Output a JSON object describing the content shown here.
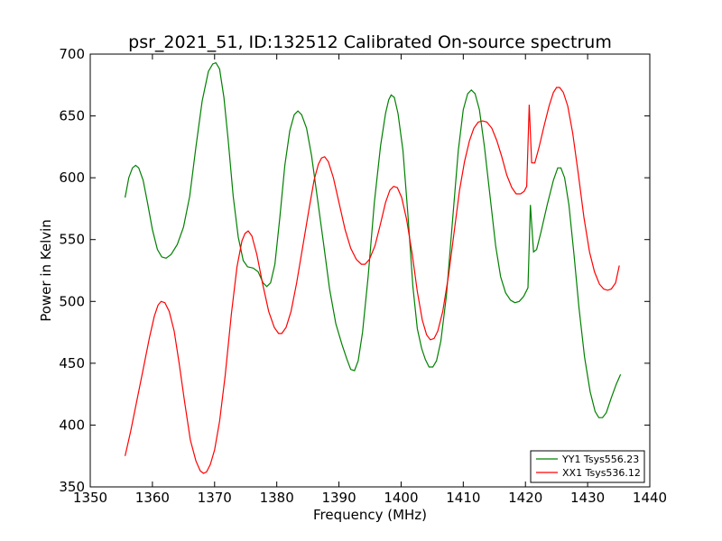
{
  "chart_data": {
    "type": "line",
    "title": "psr_2021_51, ID:132512 Calibrated On-source spectrum",
    "xlabel": "Frequency (MHz)",
    "ylabel": "Power in Kelvin",
    "xlim": [
      1350,
      1440
    ],
    "ylim": [
      350,
      700
    ],
    "xticks": [
      1350,
      1360,
      1370,
      1380,
      1390,
      1400,
      1410,
      1420,
      1430,
      1440
    ],
    "yticks": [
      350,
      400,
      450,
      500,
      550,
      600,
      650,
      700
    ],
    "grid": false,
    "legend_position": "lower-right",
    "series": [
      {
        "name": "YY1 Tsys556.23",
        "color": "#008000",
        "points": [
          [
            1355.6,
            584
          ],
          [
            1356.2,
            600
          ],
          [
            1356.8,
            608
          ],
          [
            1357.3,
            610
          ],
          [
            1357.8,
            608
          ],
          [
            1358.5,
            598
          ],
          [
            1359.2,
            580
          ],
          [
            1360.0,
            558
          ],
          [
            1360.8,
            542
          ],
          [
            1361.5,
            536
          ],
          [
            1362.2,
            535
          ],
          [
            1363.0,
            538
          ],
          [
            1364.0,
            546
          ],
          [
            1365.0,
            560
          ],
          [
            1366.0,
            585
          ],
          [
            1367.0,
            625
          ],
          [
            1368.0,
            662
          ],
          [
            1369.0,
            686
          ],
          [
            1369.7,
            692
          ],
          [
            1370.2,
            693
          ],
          [
            1370.8,
            688
          ],
          [
            1371.5,
            665
          ],
          [
            1372.2,
            630
          ],
          [
            1373.0,
            585
          ],
          [
            1373.8,
            552
          ],
          [
            1374.6,
            533
          ],
          [
            1375.3,
            528
          ],
          [
            1376.2,
            527
          ],
          [
            1377.0,
            524
          ],
          [
            1377.8,
            515
          ],
          [
            1378.4,
            512
          ],
          [
            1379.0,
            515
          ],
          [
            1379.7,
            530
          ],
          [
            1380.5,
            568
          ],
          [
            1381.3,
            610
          ],
          [
            1382.1,
            638
          ],
          [
            1382.8,
            651
          ],
          [
            1383.4,
            654
          ],
          [
            1384.0,
            651
          ],
          [
            1384.8,
            640
          ],
          [
            1385.6,
            618
          ],
          [
            1386.5,
            585
          ],
          [
            1387.5,
            548
          ],
          [
            1388.5,
            510
          ],
          [
            1389.5,
            482
          ],
          [
            1390.5,
            465
          ],
          [
            1391.3,
            453
          ],
          [
            1391.9,
            445
          ],
          [
            1392.5,
            444
          ],
          [
            1393.1,
            452
          ],
          [
            1393.8,
            475
          ],
          [
            1394.7,
            520
          ],
          [
            1395.7,
            580
          ],
          [
            1396.7,
            626
          ],
          [
            1397.5,
            652
          ],
          [
            1398.0,
            663
          ],
          [
            1398.4,
            667
          ],
          [
            1398.9,
            665
          ],
          [
            1399.5,
            652
          ],
          [
            1400.3,
            622
          ],
          [
            1401.1,
            570
          ],
          [
            1401.9,
            512
          ],
          [
            1402.6,
            478
          ],
          [
            1403.3,
            462
          ],
          [
            1403.9,
            453
          ],
          [
            1404.5,
            447
          ],
          [
            1405.1,
            447
          ],
          [
            1405.7,
            452
          ],
          [
            1406.4,
            468
          ],
          [
            1407.3,
            505
          ],
          [
            1408.3,
            567
          ],
          [
            1409.2,
            622
          ],
          [
            1410.0,
            655
          ],
          [
            1410.7,
            668
          ],
          [
            1411.3,
            671
          ],
          [
            1411.9,
            668
          ],
          [
            1412.6,
            655
          ],
          [
            1413.4,
            625
          ],
          [
            1414.3,
            585
          ],
          [
            1415.2,
            545
          ],
          [
            1416.0,
            520
          ],
          [
            1416.8,
            507
          ],
          [
            1417.6,
            501
          ],
          [
            1418.3,
            499
          ],
          [
            1419.0,
            500
          ],
          [
            1419.7,
            504
          ],
          [
            1420.4,
            511
          ],
          [
            1420.8,
            578
          ],
          [
            1421.3,
            540
          ],
          [
            1421.8,
            542
          ],
          [
            1422.5,
            556
          ],
          [
            1423.5,
            578
          ],
          [
            1424.5,
            598
          ],
          [
            1425.2,
            608
          ],
          [
            1425.7,
            608
          ],
          [
            1426.3,
            600
          ],
          [
            1427.0,
            578
          ],
          [
            1427.8,
            538
          ],
          [
            1428.6,
            495
          ],
          [
            1429.5,
            455
          ],
          [
            1430.4,
            427
          ],
          [
            1431.2,
            411
          ],
          [
            1431.8,
            406
          ],
          [
            1432.4,
            406
          ],
          [
            1433.0,
            410
          ],
          [
            1433.8,
            422
          ],
          [
            1434.6,
            433
          ],
          [
            1435.3,
            441
          ]
        ]
      },
      {
        "name": "XX1 Tsys536.12",
        "color": "#ff0000",
        "points": [
          [
            1355.6,
            375
          ],
          [
            1356.5,
            395
          ],
          [
            1357.5,
            420
          ],
          [
            1358.5,
            445
          ],
          [
            1359.5,
            470
          ],
          [
            1360.3,
            488
          ],
          [
            1360.9,
            497
          ],
          [
            1361.4,
            500
          ],
          [
            1362.0,
            499
          ],
          [
            1362.7,
            492
          ],
          [
            1363.5,
            476
          ],
          [
            1364.3,
            450
          ],
          [
            1365.2,
            418
          ],
          [
            1366.1,
            388
          ],
          [
            1367.0,
            371
          ],
          [
            1367.7,
            363
          ],
          [
            1368.2,
            361
          ],
          [
            1368.7,
            362
          ],
          [
            1369.3,
            368
          ],
          [
            1370.0,
            380
          ],
          [
            1370.8,
            403
          ],
          [
            1371.7,
            440
          ],
          [
            1372.7,
            490
          ],
          [
            1373.6,
            528
          ],
          [
            1374.4,
            549
          ],
          [
            1374.9,
            555
          ],
          [
            1375.4,
            557
          ],
          [
            1376.0,
            553
          ],
          [
            1376.8,
            538
          ],
          [
            1377.7,
            515
          ],
          [
            1378.7,
            492
          ],
          [
            1379.6,
            479
          ],
          [
            1380.3,
            474
          ],
          [
            1380.8,
            474
          ],
          [
            1381.5,
            479
          ],
          [
            1382.3,
            492
          ],
          [
            1383.2,
            515
          ],
          [
            1384.2,
            545
          ],
          [
            1385.2,
            575
          ],
          [
            1386.0,
            598
          ],
          [
            1386.7,
            611
          ],
          [
            1387.2,
            616
          ],
          [
            1387.7,
            617
          ],
          [
            1388.3,
            613
          ],
          [
            1389.1,
            600
          ],
          [
            1390.0,
            580
          ],
          [
            1391.0,
            558
          ],
          [
            1391.9,
            543
          ],
          [
            1392.8,
            534
          ],
          [
            1393.6,
            530
          ],
          [
            1394.2,
            530
          ],
          [
            1394.9,
            534
          ],
          [
            1395.8,
            545
          ],
          [
            1396.7,
            563
          ],
          [
            1397.5,
            580
          ],
          [
            1398.2,
            590
          ],
          [
            1398.8,
            593
          ],
          [
            1399.4,
            592
          ],
          [
            1400.1,
            584
          ],
          [
            1400.9,
            566
          ],
          [
            1401.8,
            538
          ],
          [
            1402.6,
            508
          ],
          [
            1403.4,
            485
          ],
          [
            1404.1,
            473
          ],
          [
            1404.7,
            469
          ],
          [
            1405.3,
            470
          ],
          [
            1405.9,
            476
          ],
          [
            1406.7,
            492
          ],
          [
            1407.6,
            520
          ],
          [
            1408.5,
            555
          ],
          [
            1409.4,
            590
          ],
          [
            1410.2,
            613
          ],
          [
            1411.0,
            630
          ],
          [
            1411.7,
            640
          ],
          [
            1412.4,
            645
          ],
          [
            1413.1,
            646
          ],
          [
            1413.8,
            645
          ],
          [
            1414.6,
            640
          ],
          [
            1415.4,
            630
          ],
          [
            1416.2,
            617
          ],
          [
            1417.0,
            602
          ],
          [
            1417.8,
            592
          ],
          [
            1418.5,
            587
          ],
          [
            1419.2,
            587
          ],
          [
            1419.8,
            589
          ],
          [
            1420.2,
            593
          ],
          [
            1420.6,
            659
          ],
          [
            1421.0,
            612
          ],
          [
            1421.5,
            612
          ],
          [
            1422.2,
            625
          ],
          [
            1423.0,
            642
          ],
          [
            1423.8,
            658
          ],
          [
            1424.5,
            669
          ],
          [
            1425.0,
            673
          ],
          [
            1425.5,
            673
          ],
          [
            1426.1,
            669
          ],
          [
            1426.8,
            658
          ],
          [
            1427.6,
            636
          ],
          [
            1428.5,
            603
          ],
          [
            1429.4,
            568
          ],
          [
            1430.3,
            540
          ],
          [
            1431.1,
            524
          ],
          [
            1431.9,
            514
          ],
          [
            1432.6,
            510
          ],
          [
            1433.2,
            509
          ],
          [
            1433.8,
            510
          ],
          [
            1434.5,
            515
          ],
          [
            1435.1,
            529
          ]
        ]
      }
    ]
  }
}
